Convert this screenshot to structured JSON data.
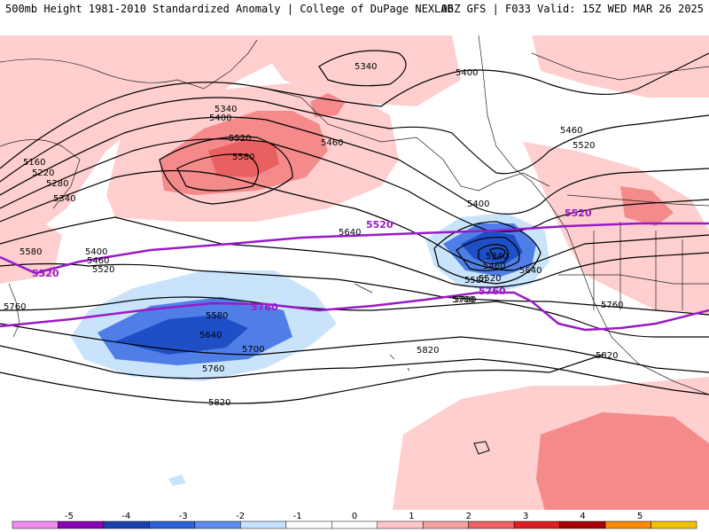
{
  "header": {
    "title_left": "500mb Height 1981-2010 Standardized Anomaly | College of DuPage NEXLAB",
    "title_right": "06Z GFS | F033 Valid: 15Z WED MAR 26 2025"
  },
  "contour_labels": {
    "black": [
      "5340",
      "5400",
      "5340",
      "5400",
      "5160",
      "5220",
      "5280",
      "5340",
      "5520",
      "5580",
      "5460",
      "5400",
      "5460",
      "5520",
      "5580",
      "5640",
      "5700",
      "5820",
      "5760",
      "5580",
      "5640",
      "5700",
      "5760",
      "5820",
      "5400",
      "5340",
      "5460",
      "5520",
      "5580",
      "5640",
      "5700",
      "5460",
      "5520",
      "5760",
      "5820"
    ],
    "purple": [
      "5520",
      "5520",
      "5520",
      "5760",
      "5760"
    ]
  },
  "colorbar": {
    "ticks": [
      "-5",
      "-4",
      "-3",
      "-2",
      "-1",
      "0",
      "1",
      "2",
      "3",
      "4",
      "5"
    ],
    "colors": [
      "#f28cf0",
      "#8a00b8",
      "#1b3fb0",
      "#2b62d8",
      "#5b8ef0",
      "#c6e2ff",
      "#ffffff",
      "#ffffff",
      "#ffc8c8",
      "#f6a0a0",
      "#ef6262",
      "#dc1e1e",
      "#a80000",
      "#ff8c00",
      "#f2c200"
    ]
  },
  "colors": {
    "positive_light": "#ffcfcf",
    "positive_mid": "#f58a8a",
    "positive_strong": "#e96060",
    "negative_light": "#c9e3fb",
    "negative_mid": "#4f7fe6",
    "negative_strong": "#1f4fc7",
    "reference_contour": "#9a19c8"
  }
}
